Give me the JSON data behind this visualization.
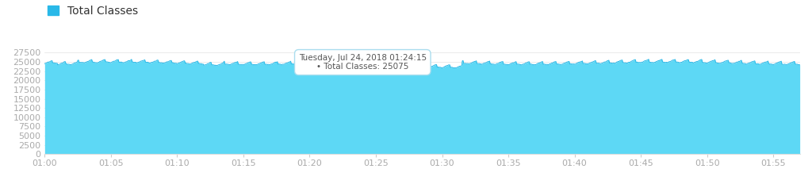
{
  "title": "Total Classes",
  "fill_color": "#5DD8F5",
  "line_color": "#29B8E8",
  "background_color": "#ffffff",
  "grid_color": "#e8e8e8",
  "legend_color": "#29B8E8",
  "ylim": [
    0,
    27500
  ],
  "yticks": [
    0,
    2500,
    5000,
    7500,
    10000,
    12500,
    15000,
    17500,
    20000,
    22500,
    25000,
    27500
  ],
  "xlabel_ticks": [
    "01:00",
    "01:05",
    "01:10",
    "01:15",
    "01:20",
    "01:25",
    "01:30",
    "01:35",
    "01:40",
    "01:45",
    "01:50",
    "01:55"
  ],
  "tooltip_line1": "Tuesday, Jul 24, 2018 01:24:15",
  "tooltip_line2": "Total Classes: 25075",
  "title_fontsize": 10,
  "tick_fontsize": 8,
  "tick_color": "#aaaaaa",
  "xlim": [
    0,
    57
  ]
}
